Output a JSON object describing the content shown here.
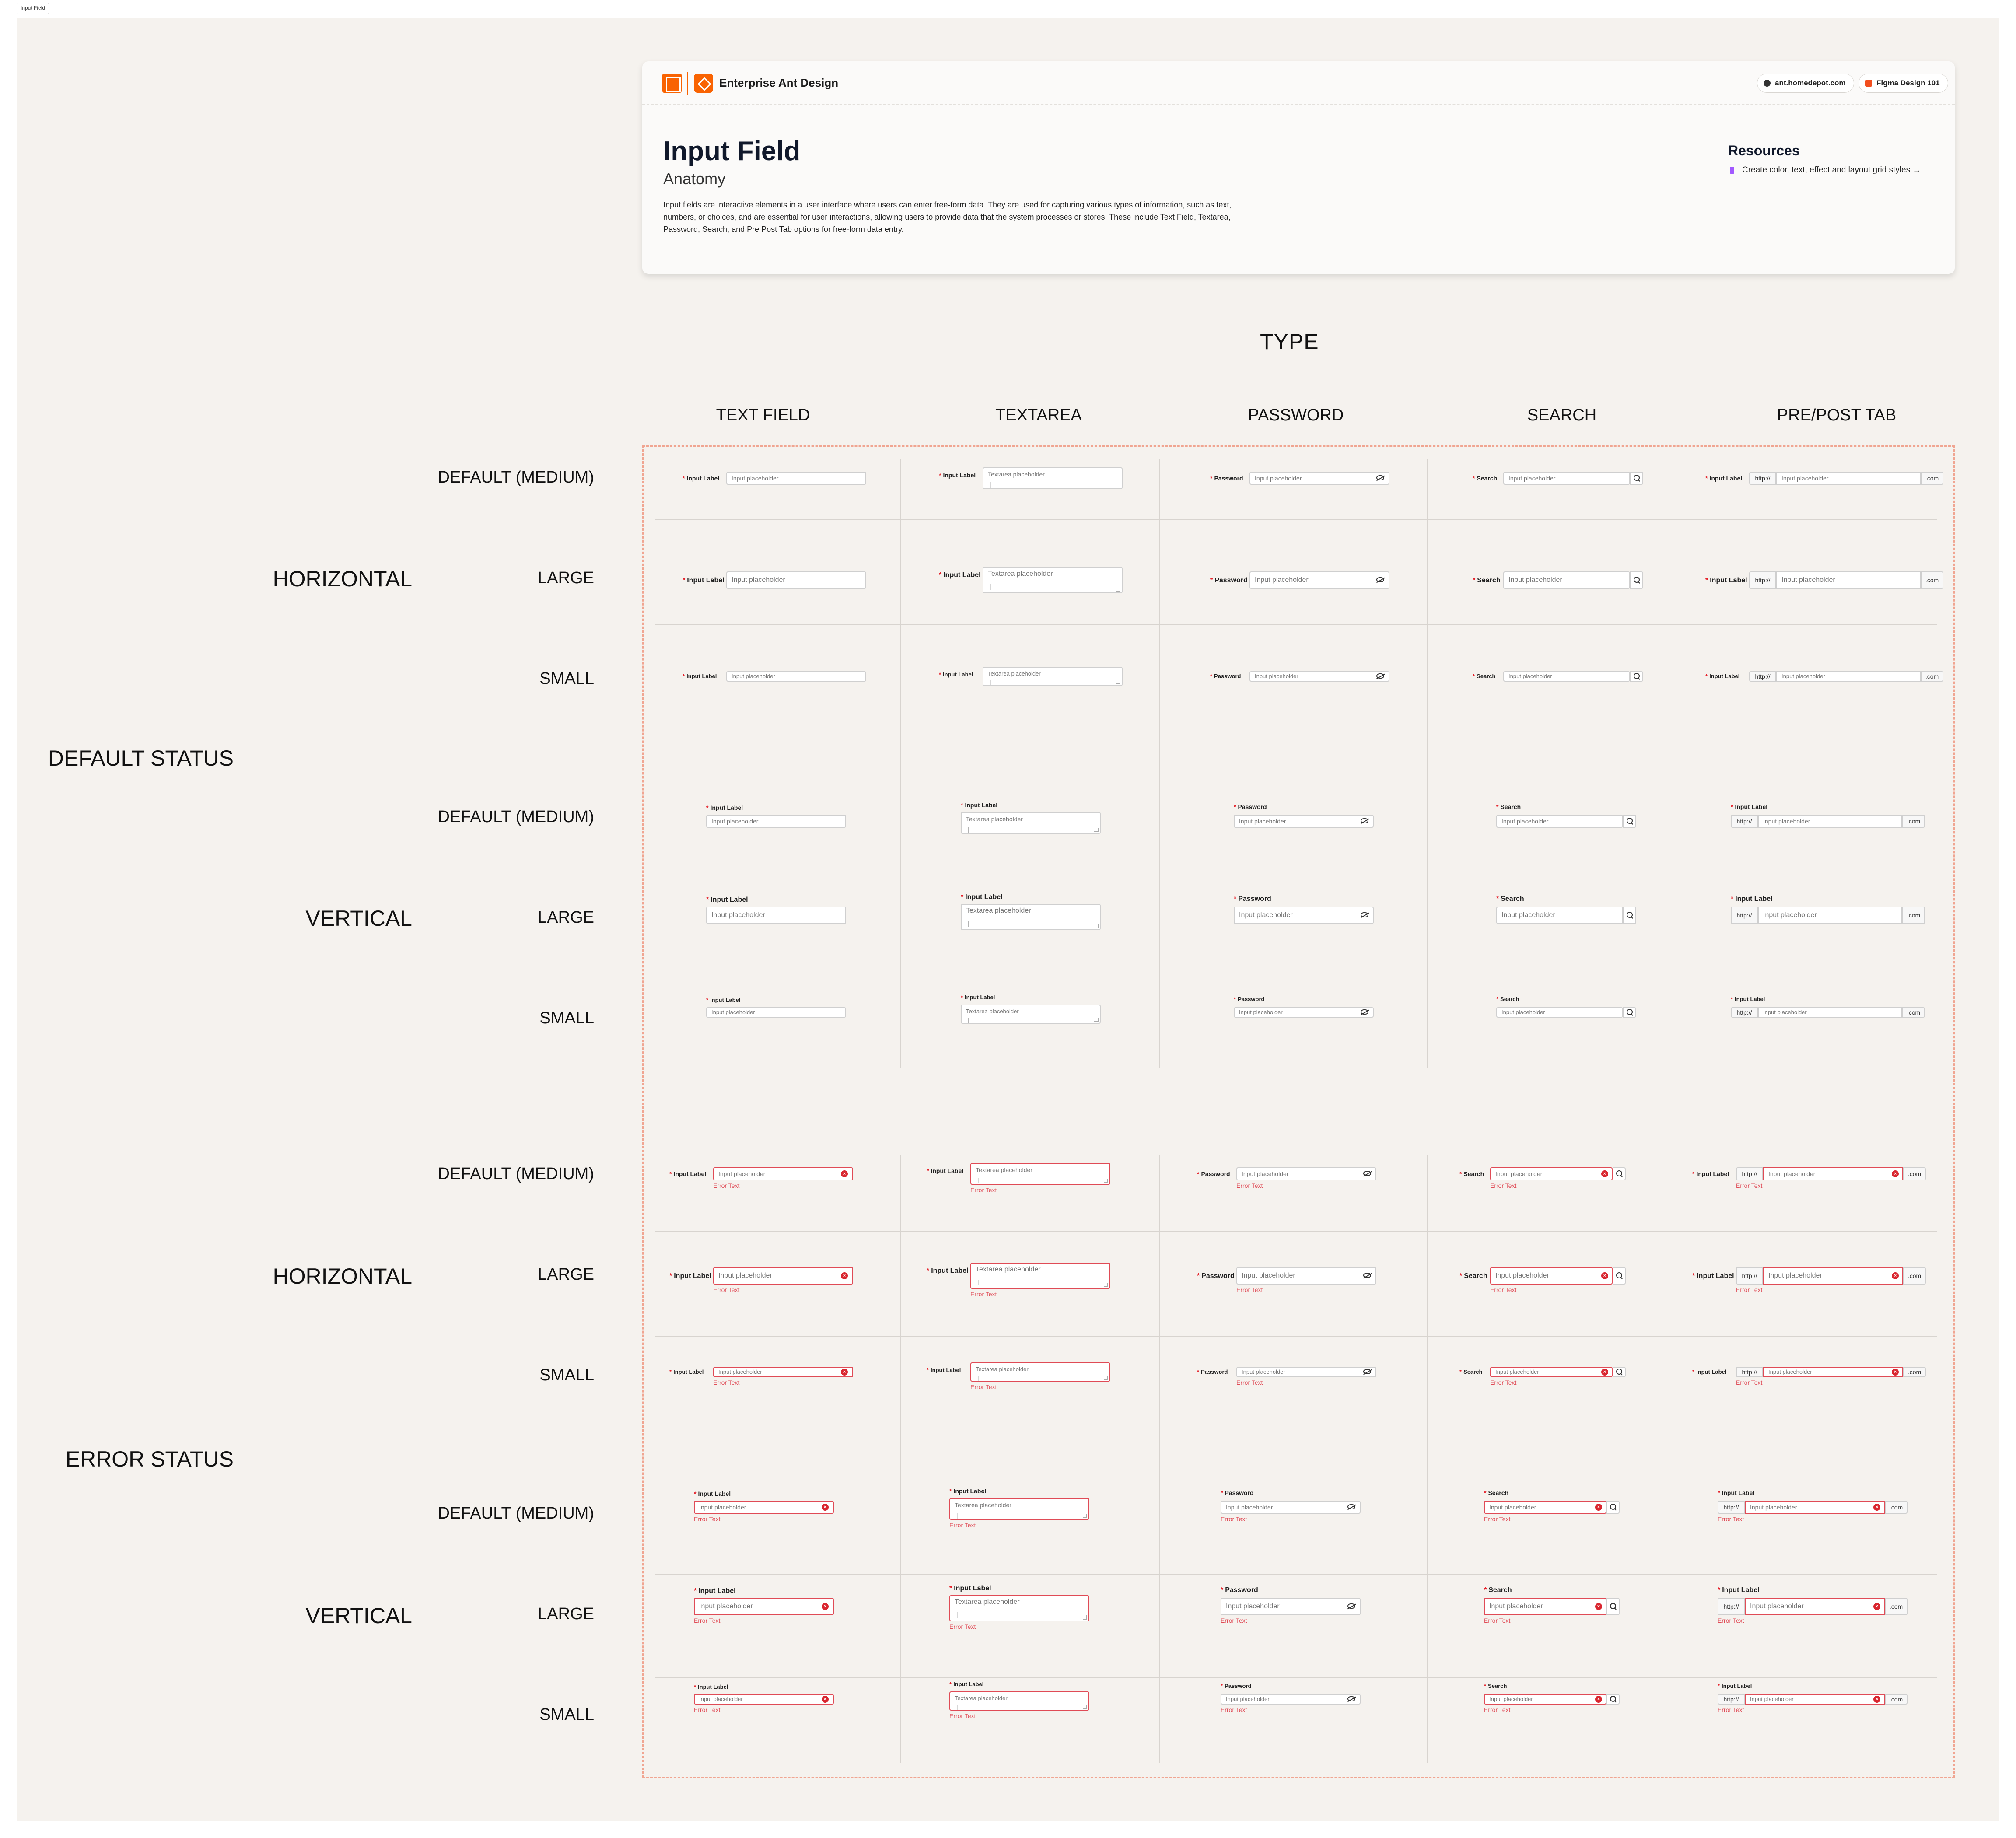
{
  "frame": {
    "tag": "Input Field"
  },
  "header": {
    "brand": "Enterprise Ant Design",
    "links": [
      {
        "label": "ant.homedepot.com",
        "icon": "globe-icon"
      },
      {
        "label": "Figma Design 101",
        "icon": "figma-icon"
      }
    ],
    "title": "Input Field",
    "subtitle": "Anatomy",
    "description": "Input fields are interactive elements in a user interface where users can enter free-form data. They are used for capturing various types of information, such as text, numbers, or choices, and are essential for user interactions, allowing users to provide data that the system processes or stores. These include Text Field, Textarea, Password, Search, and Pre Post Tab options for free-form data entry.",
    "resources": {
      "title": "Resources",
      "link": "Create color, text, effect and layout grid styles",
      "arrow": "→"
    }
  },
  "axes": {
    "type_label": "TYPE",
    "columns": [
      "TEXT FIELD",
      "TEXTAREA",
      "PASSWORD",
      "SEARCH",
      "PRE/POST TAB"
    ],
    "statuses": [
      "DEFAULT STATUS",
      "ERROR STATUS"
    ],
    "orientations": [
      "HORIZONTAL",
      "VERTICAL"
    ],
    "sizes": [
      "DEFAULT (MEDIUM)",
      "LARGE",
      "SMALL"
    ]
  },
  "fields": {
    "input_label": "Input Label",
    "password_label": "Password",
    "search_label": "Search",
    "input_placeholder": "Input placeholder",
    "textarea_placeholder": "Textarea placeholder",
    "caret": "|",
    "prefix": "http://",
    "suffix": ".com",
    "required_mark": "*",
    "error_text": "Error Text",
    "clear_glyph": "×"
  },
  "colors": {
    "brand_orange": "#f96302",
    "error_red": "#e04b56",
    "required_red": "#e5212a",
    "canvas": "#f5f2ee",
    "grid_border": "#f0a591"
  }
}
